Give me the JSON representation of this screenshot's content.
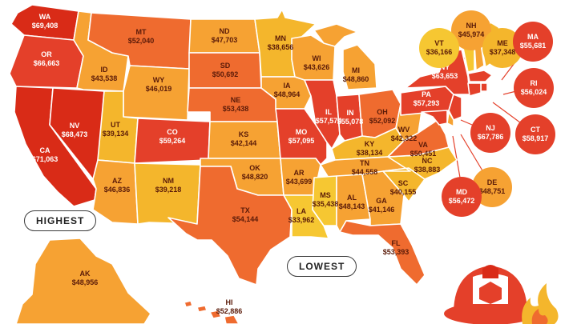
{
  "colors": {
    "highest": "#d92b17",
    "high": "#e4402a",
    "upper": "#ef6b2f",
    "middle": "#f6a233",
    "lower": "#f4b62c",
    "lowest": "#f6c732",
    "callout_border": "#3a3a3a"
  },
  "states": [
    {
      "abbr": "WA",
      "value": "$69,408",
      "tier": "highest"
    },
    {
      "abbr": "OR",
      "value": "$66,663",
      "tier": "high"
    },
    {
      "abbr": "CA",
      "value": "$71,063",
      "tier": "highest"
    },
    {
      "abbr": "NV",
      "value": "$68,473",
      "tier": "highest"
    },
    {
      "abbr": "ID",
      "value": "$43,538",
      "tier": "middle"
    },
    {
      "abbr": "MT",
      "value": "$52,040",
      "tier": "upper"
    },
    {
      "abbr": "WY",
      "value": "$46,019",
      "tier": "middle"
    },
    {
      "abbr": "UT",
      "value": "$39,134",
      "tier": "lower"
    },
    {
      "abbr": "AZ",
      "value": "$46,836",
      "tier": "middle"
    },
    {
      "abbr": "CO",
      "value": "$59,264",
      "tier": "high"
    },
    {
      "abbr": "NM",
      "value": "$39,218",
      "tier": "lower"
    },
    {
      "abbr": "ND",
      "value": "$47,703",
      "tier": "middle"
    },
    {
      "abbr": "SD",
      "value": "$50,692",
      "tier": "upper"
    },
    {
      "abbr": "NE",
      "value": "$53,438",
      "tier": "upper"
    },
    {
      "abbr": "KS",
      "value": "$42,144",
      "tier": "middle"
    },
    {
      "abbr": "OK",
      "value": "$48,820",
      "tier": "middle"
    },
    {
      "abbr": "TX",
      "value": "$54,144",
      "tier": "upper"
    },
    {
      "abbr": "MN",
      "value": "$38,656",
      "tier": "lower"
    },
    {
      "abbr": "IA",
      "value": "$48,964",
      "tier": "middle"
    },
    {
      "abbr": "MO",
      "value": "$57,095",
      "tier": "high"
    },
    {
      "abbr": "AR",
      "value": "$43,699",
      "tier": "middle"
    },
    {
      "abbr": "LA",
      "value": "$33,962",
      "tier": "lowest"
    },
    {
      "abbr": "WI",
      "value": "$43,626",
      "tier": "middle"
    },
    {
      "abbr": "IL",
      "value": "$57,574",
      "tier": "high"
    },
    {
      "abbr": "MI",
      "value": "$48,860",
      "tier": "middle"
    },
    {
      "abbr": "IN",
      "value": "$55,078",
      "tier": "high"
    },
    {
      "abbr": "OH",
      "value": "$52,092",
      "tier": "upper"
    },
    {
      "abbr": "KY",
      "value": "$38,134",
      "tier": "lower"
    },
    {
      "abbr": "TN",
      "value": "$44,558",
      "tier": "middle"
    },
    {
      "abbr": "MS",
      "value": "$35,438",
      "tier": "lowest"
    },
    {
      "abbr": "AL",
      "value": "$48,143",
      "tier": "middle"
    },
    {
      "abbr": "GA",
      "value": "$41,146",
      "tier": "middle"
    },
    {
      "abbr": "FL",
      "value": "$53,393",
      "tier": "upper"
    },
    {
      "abbr": "SC",
      "value": "$40,155",
      "tier": "lower"
    },
    {
      "abbr": "NC",
      "value": "$38,883",
      "tier": "lower"
    },
    {
      "abbr": "VA",
      "value": "$50,451",
      "tier": "upper"
    },
    {
      "abbr": "WV",
      "value": "$42,322",
      "tier": "middle"
    },
    {
      "abbr": "PA",
      "value": "$57,293",
      "tier": "high"
    },
    {
      "abbr": "NY",
      "value": "$63,653",
      "tier": "high"
    },
    {
      "abbr": "AK",
      "value": "$48,956",
      "tier": "middle"
    },
    {
      "abbr": "HI",
      "value": "$52,886",
      "tier": "upper"
    }
  ],
  "bubble_states": [
    {
      "abbr": "NH",
      "value": "$45,974",
      "tier": "middle"
    },
    {
      "abbr": "VT",
      "value": "$36,166",
      "tier": "lowest"
    },
    {
      "abbr": "ME",
      "value": "$37,348",
      "tier": "lower"
    },
    {
      "abbr": "MA",
      "value": "$55,681",
      "tier": "high"
    },
    {
      "abbr": "RI",
      "value": "$56,024",
      "tier": "high"
    },
    {
      "abbr": "CT",
      "value": "$58,917",
      "tier": "high"
    },
    {
      "abbr": "NJ",
      "value": "$67,786",
      "tier": "high"
    },
    {
      "abbr": "DE",
      "value": "$48,751",
      "tier": "middle"
    },
    {
      "abbr": "MD",
      "value": "$56,472",
      "tier": "high"
    }
  ],
  "callouts": {
    "highest": "HIGHEST",
    "lowest": "LOWEST"
  },
  "icons": {
    "illustration": "firefighter-helmet-icon",
    "flames": "flame-icon"
  }
}
